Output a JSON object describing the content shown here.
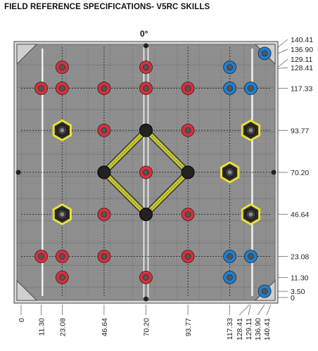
{
  "title": "FIELD REFERENCE SPECIFICATIONS- V5RC SKILLS",
  "orientation_label": "0°",
  "axis_range": [
    0,
    140.41
  ],
  "y_labels": [
    "140.41",
    "136.90",
    "129.11",
    "128.41",
    "117.33",
    "93.77",
    "70.20",
    "46.64",
    "23.08",
    "11.30",
    "3.50",
    "0"
  ],
  "x_labels": [
    "0",
    "11.30",
    "23.08",
    "46.64",
    "70.20",
    "93.77",
    "117.33",
    "128.41",
    "129.11",
    "136.90",
    "140.41"
  ],
  "colors": {
    "field_tile": "#8a8a8a",
    "wall": "#d9d9d9",
    "red_ring": "#d8303c",
    "blue_ring": "#1f7fd0",
    "mogo_yellow": "#e8e03a",
    "ladder": "#c8c832",
    "post": "#222222"
  },
  "red_rings": [
    [
      23.08,
      129.11
    ],
    [
      70.2,
      129.11
    ],
    [
      11.3,
      117.33
    ],
    [
      23.08,
      117.33
    ],
    [
      46.64,
      117.33
    ],
    [
      70.2,
      117.33
    ],
    [
      93.77,
      117.33
    ],
    [
      46.64,
      93.77
    ],
    [
      93.77,
      93.77
    ],
    [
      70.2,
      70.2
    ],
    [
      46.64,
      46.64
    ],
    [
      93.77,
      46.64
    ],
    [
      11.3,
      23.08
    ],
    [
      23.08,
      23.08
    ],
    [
      46.64,
      23.08
    ],
    [
      93.77,
      23.08
    ],
    [
      23.08,
      11.3
    ],
    [
      70.2,
      11.3
    ]
  ],
  "blue_rings": [
    [
      136.9,
      136.9
    ],
    [
      117.33,
      129.11
    ],
    [
      117.33,
      117.33
    ],
    [
      129.11,
      117.33
    ],
    [
      117.33,
      23.08
    ],
    [
      129.11,
      23.08
    ],
    [
      117.33,
      11.3
    ],
    [
      136.9,
      3.5
    ]
  ],
  "mobile_goals": [
    [
      23.08,
      93.77
    ],
    [
      129.11,
      93.77
    ],
    [
      117.33,
      70.2
    ],
    [
      23.08,
      46.64
    ],
    [
      129.11,
      46.64
    ]
  ],
  "ladder_posts": [
    [
      70.2,
      93.77
    ],
    [
      46.64,
      70.2
    ],
    [
      93.77,
      70.2
    ],
    [
      70.2,
      46.64
    ]
  ]
}
